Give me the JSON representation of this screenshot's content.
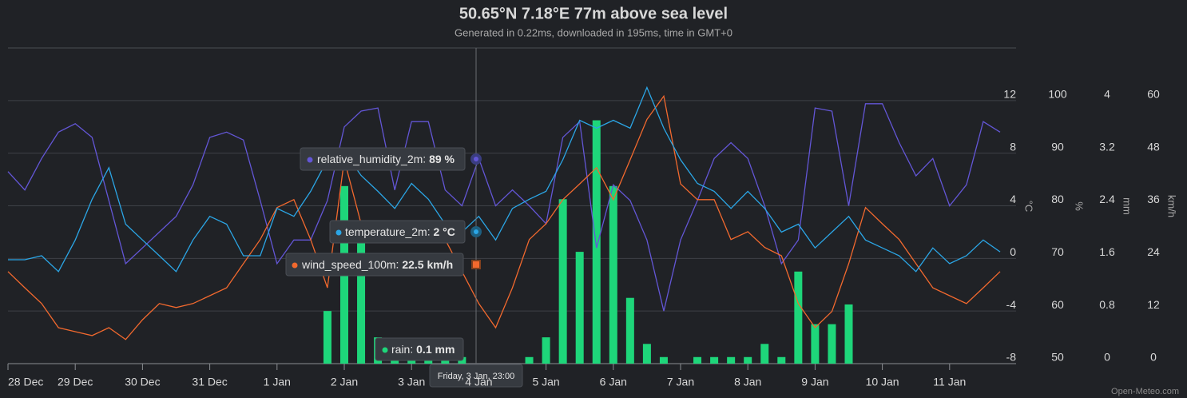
{
  "chart_data": {
    "type": "line",
    "title": "50.65°N 7.18°E 77m above sea level",
    "subtitle": "Generated in 0.22ms, downloaded in 195ms, time in GMT+0",
    "credit": "Open-Meteo.com",
    "categories": [
      "28 Dec",
      null,
      null,
      null,
      "29 Dec",
      null,
      null,
      null,
      "30 Dec",
      null,
      null,
      null,
      "31 Dec",
      null,
      null,
      null,
      "1 Jan",
      null,
      null,
      null,
      "2 Jan",
      null,
      null,
      null,
      "3 Jan",
      null,
      null,
      null,
      "4 Jan",
      null,
      null,
      null,
      "5 Jan",
      null,
      null,
      null,
      "6 Jan",
      null,
      null,
      null,
      "7 Jan",
      null,
      null,
      null,
      "8 Jan",
      null,
      null,
      null,
      "9 Jan",
      null,
      null,
      null,
      "10 Jan",
      null,
      null,
      null,
      "11 Jan",
      null,
      null,
      null
    ],
    "ylim": [
      -8,
      16
    ],
    "yticks": [
      -8,
      -4,
      0,
      4,
      8,
      12
    ],
    "ylabel": "°C",
    "y2lim": [
      50,
      110
    ],
    "y2ticks": [
      50,
      60,
      70,
      80,
      90,
      100
    ],
    "y2label": "%",
    "y3lim": [
      0,
      4.8
    ],
    "y3ticks": [
      0,
      0.8,
      1.6,
      2.4,
      3.2,
      4
    ],
    "y3label": "mm",
    "y4lim": [
      0,
      72
    ],
    "y4ticks": [
      0,
      12,
      24,
      36,
      48,
      60
    ],
    "y4label": "km/h",
    "grid": true,
    "series": [
      {
        "name": "rain",
        "type": "bar",
        "axis": "y3",
        "color": "#1ed67a",
        "values": [
          0,
          0,
          0,
          0,
          0,
          0,
          0,
          0,
          0,
          0,
          0,
          0,
          0,
          0,
          0,
          0,
          0,
          0,
          0,
          0.8,
          2.7,
          1.9,
          0.4,
          0.3,
          0.1,
          0.1,
          0.1,
          0.1,
          0,
          0,
          0,
          0.1,
          0.4,
          2.5,
          1.7,
          3.7,
          2.7,
          1.0,
          0.3,
          0.1,
          0,
          0.1,
          0.1,
          0.1,
          0.1,
          0.3,
          0.1,
          1.4,
          0.6,
          0.6,
          0.9,
          0,
          0,
          0,
          0,
          0,
          0,
          0,
          0,
          0
        ]
      },
      {
        "name": "relative_humidity_2m",
        "type": "line",
        "axis": "y2",
        "color": "#6356d6",
        "values": [
          86.5,
          83,
          89,
          94,
          95.6,
          93,
          81,
          69,
          72,
          75,
          78,
          84,
          93,
          94,
          92.5,
          81,
          69,
          73.5,
          73.5,
          81,
          95,
          98,
          98.6,
          83,
          96,
          96,
          83,
          80,
          89,
          80,
          83,
          80,
          76.6,
          93,
          96,
          72,
          84,
          81,
          73.5,
          60,
          73.5,
          81,
          89,
          92,
          89,
          80,
          69,
          73.5,
          98.6,
          98,
          80,
          99.4,
          99.4,
          92,
          85.7,
          89,
          80,
          84,
          96,
          94
        ]
      },
      {
        "name": "wind_speed_100m",
        "type": "line",
        "axis": "y4",
        "color": "#f2692e",
        "values": [
          21,
          17.3,
          13.7,
          8.2,
          7.3,
          6.4,
          8.2,
          5.5,
          10,
          13.7,
          12.8,
          13.7,
          15.5,
          17.3,
          22.8,
          28.3,
          35.6,
          37.4,
          28.3,
          17.3,
          46.5,
          31.9,
          28.3,
          28.3,
          30.1,
          31.9,
          28.3,
          21,
          13.7,
          8.2,
          17.3,
          28.3,
          31.9,
          37.4,
          41,
          44.7,
          37.4,
          46.5,
          55.7,
          61,
          41,
          37.4,
          37.4,
          28.3,
          30.1,
          26.5,
          24.6,
          13.7,
          8.2,
          11.9,
          22.8,
          35.6,
          31.9,
          28.3,
          22.8,
          17.3,
          15.5,
          13.7,
          17.3,
          21
        ]
      },
      {
        "name": "temperature_2m",
        "type": "line",
        "axis": "y",
        "color": "#2ba6e6",
        "values": [
          -0.1,
          -0.1,
          0.2,
          -1,
          1.4,
          4.5,
          6.9,
          2.6,
          1.4,
          0.2,
          -1,
          1.4,
          3.2,
          2.6,
          0.2,
          0.2,
          3.8,
          3.2,
          5.1,
          7.5,
          8.1,
          6.3,
          5.1,
          3.8,
          5.7,
          4.5,
          2.6,
          2.0,
          3.2,
          1.4,
          3.8,
          4.5,
          5.1,
          7.5,
          10.5,
          9.9,
          10.5,
          9.9,
          13,
          9.9,
          7.5,
          5.7,
          5.1,
          3.8,
          5.1,
          3.8,
          2.0,
          2.6,
          0.8,
          2.0,
          3.2,
          1.4,
          0.8,
          0.2,
          -1,
          0.8,
          -0.4,
          0.2,
          1.4,
          0.5
        ]
      }
    ],
    "tooltip": {
      "time": "Friday, 3 Jan, 23:00",
      "items": [
        {
          "name": "relative_humidity_2m",
          "value": "89 %"
        },
        {
          "name": "temperature_2m",
          "value": "2 °C"
        },
        {
          "name": "wind_speed_100m",
          "value": "22.5 km/h"
        },
        {
          "name": "rain",
          "value": "0.1 mm"
        }
      ]
    }
  }
}
